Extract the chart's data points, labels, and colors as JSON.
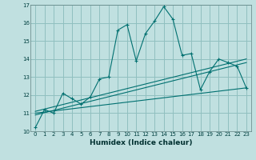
{
  "title": "",
  "xlabel": "Humidex (Indice chaleur)",
  "background_color": "#c0e0e0",
  "grid_color": "#90c0c0",
  "line_color": "#007070",
  "xlim": [
    -0.5,
    23.5
  ],
  "ylim": [
    10,
    17
  ],
  "xticks": [
    0,
    1,
    2,
    3,
    4,
    5,
    6,
    7,
    8,
    9,
    10,
    11,
    12,
    13,
    14,
    15,
    16,
    17,
    18,
    19,
    20,
    21,
    22,
    23
  ],
  "yticks": [
    10,
    11,
    12,
    13,
    14,
    15,
    16,
    17
  ],
  "series1_x": [
    0,
    1,
    2,
    3,
    4,
    5,
    6,
    7,
    8,
    9,
    10,
    11,
    12,
    13,
    14,
    15,
    16,
    17,
    18,
    19,
    20,
    21,
    22,
    23
  ],
  "series1_y": [
    10.2,
    11.2,
    11.0,
    12.1,
    11.8,
    11.5,
    11.9,
    12.9,
    13.0,
    15.6,
    15.9,
    13.9,
    15.4,
    16.1,
    16.9,
    16.2,
    14.2,
    14.3,
    12.3,
    13.3,
    14.0,
    13.8,
    13.6,
    12.4
  ],
  "line2_x": [
    0,
    23
  ],
  "line2_y": [
    11.0,
    12.4
  ],
  "line3_x": [
    0,
    23
  ],
  "line3_y": [
    10.9,
    13.8
  ],
  "line4_x": [
    0,
    23
  ],
  "line4_y": [
    11.1,
    14.0
  ]
}
